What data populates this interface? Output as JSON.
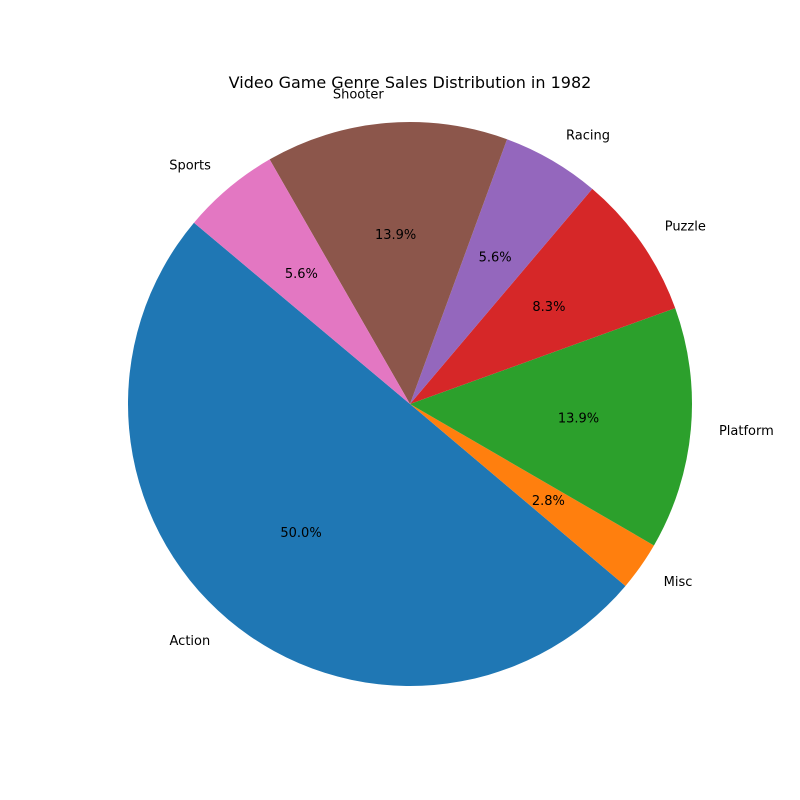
{
  "chart_data": {
    "type": "pie",
    "title": "Video Game Genre Sales Distribution in 1982",
    "start_angle_deg": 140,
    "direction": "counterclockwise",
    "slices": [
      {
        "label": "Action",
        "pct_label": "50.0%",
        "value": 50.0,
        "color": "#1f77b4"
      },
      {
        "label": "Misc",
        "pct_label": "2.8%",
        "value": 2.8,
        "color": "#ff7f0e"
      },
      {
        "label": "Platform",
        "pct_label": "13.9%",
        "value": 13.9,
        "color": "#2ca02c"
      },
      {
        "label": "Puzzle",
        "pct_label": "8.3%",
        "value": 8.3,
        "color": "#d62728"
      },
      {
        "label": "Racing",
        "pct_label": "5.6%",
        "value": 5.6,
        "color": "#9467bd"
      },
      {
        "label": "Shooter",
        "pct_label": "13.9%",
        "value": 13.9,
        "color": "#8c564b"
      },
      {
        "label": "Sports",
        "pct_label": "5.6%",
        "value": 5.6,
        "color": "#e377c2"
      }
    ]
  }
}
